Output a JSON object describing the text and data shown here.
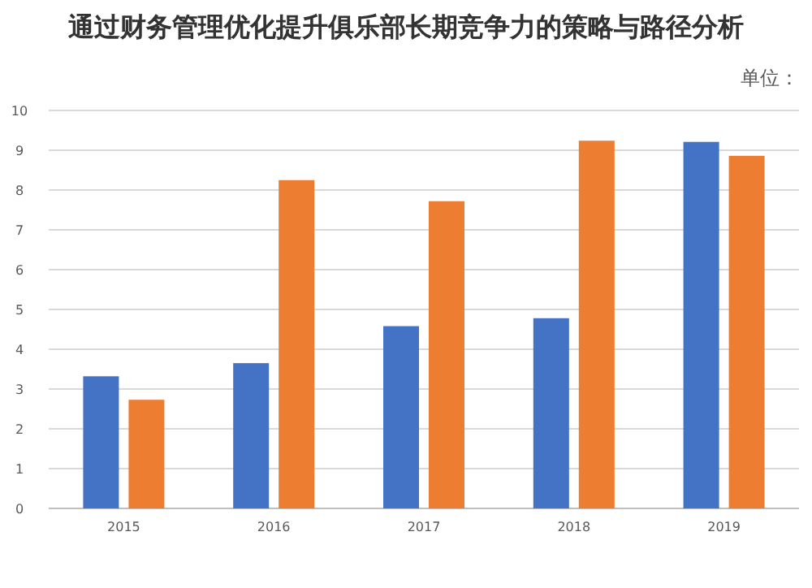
{
  "chart_data": {
    "type": "bar",
    "title": "通过财务管理优化提升俱乐部长期竞争力的策略与路径分析",
    "annotations": [
      "单位："
    ],
    "categories": [
      "2015",
      "2016",
      "2017",
      "2018",
      "2019"
    ],
    "series": [
      {
        "color": "#4472c4",
        "values": [
          3.32,
          3.65,
          4.58,
          4.78,
          9.21
        ]
      },
      {
        "color": "#ed7d31",
        "values": [
          2.73,
          8.25,
          7.72,
          9.24,
          8.86
        ]
      }
    ],
    "ylim": [
      0,
      10
    ],
    "yticks": [
      0,
      1,
      2,
      3,
      4,
      5,
      6,
      7,
      8,
      9,
      10
    ],
    "grid": "y"
  }
}
